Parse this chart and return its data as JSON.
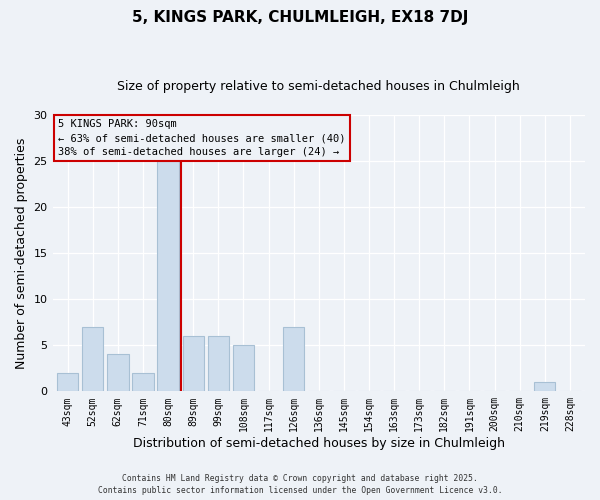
{
  "title": "5, KINGS PARK, CHULMLEIGH, EX18 7DJ",
  "subtitle": "Size of property relative to semi-detached houses in Chulmleigh",
  "xlabel": "Distribution of semi-detached houses by size in Chulmleigh",
  "ylabel": "Number of semi-detached properties",
  "bar_labels": [
    "43sqm",
    "52sqm",
    "62sqm",
    "71sqm",
    "80sqm",
    "89sqm",
    "99sqm",
    "108sqm",
    "117sqm",
    "126sqm",
    "136sqm",
    "145sqm",
    "154sqm",
    "163sqm",
    "173sqm",
    "182sqm",
    "191sqm",
    "200sqm",
    "210sqm",
    "219sqm",
    "228sqm"
  ],
  "bar_values": [
    2,
    7,
    4,
    2,
    25,
    6,
    6,
    5,
    0,
    7,
    0,
    0,
    0,
    0,
    0,
    0,
    0,
    0,
    0,
    1,
    0
  ],
  "bar_color": "#ccdcec",
  "bar_edge_color": "#a8c0d4",
  "vline_color": "#cc0000",
  "vline_position": 4.5,
  "annotation_line0": "5 KINGS PARK: 90sqm",
  "annotation_line1": "← 63% of semi-detached houses are smaller (40)",
  "annotation_line2": "38% of semi-detached houses are larger (24) →",
  "annotation_box_color": "#cc0000",
  "ylim": [
    0,
    30
  ],
  "yticks": [
    0,
    5,
    10,
    15,
    20,
    25,
    30
  ],
  "bg_color": "#eef2f7",
  "footer1": "Contains HM Land Registry data © Crown copyright and database right 2025.",
  "footer2": "Contains public sector information licensed under the Open Government Licence v3.0.",
  "title_fontsize": 11,
  "subtitle_fontsize": 9,
  "tick_fontsize": 7,
  "axis_label_fontsize": 9
}
